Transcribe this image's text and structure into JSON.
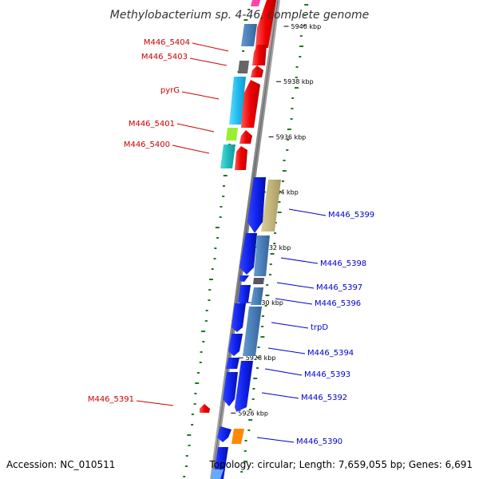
{
  "title": "Methylobacterium sp. 4-46, complete genome",
  "footer": {
    "accession": "Accession: NC_010511",
    "summary": "Topology: circular; Length: 7,659,055 bp; Genes: 6,691"
  },
  "colors": {
    "reverse_label": "#cc0000",
    "forward_label": "#0000cc",
    "backbone": "#888888",
    "gc_ticks": "#227722"
  },
  "kbp_ticks": [
    {
      "label": "5940 kbp",
      "pos_kbp": 5940
    },
    {
      "label": "5938 kbp",
      "pos_kbp": 5938
    },
    {
      "label": "5936 kbp",
      "pos_kbp": 5936
    },
    {
      "label": "5934 kbp",
      "pos_kbp": 5934
    },
    {
      "label": "5932 kbp",
      "pos_kbp": 5932
    },
    {
      "label": "5930 kbp",
      "pos_kbp": 5930
    },
    {
      "label": "5928 kbp",
      "pos_kbp": 5928
    },
    {
      "label": "5926 kbp",
      "pos_kbp": 5926
    }
  ],
  "genes": [
    {
      "label": "M446_5404",
      "strand": "reverse"
    },
    {
      "label": "M446_5403",
      "strand": "reverse"
    },
    {
      "label": "pyrG",
      "strand": "reverse"
    },
    {
      "label": "M446_5401",
      "strand": "reverse"
    },
    {
      "label": "M446_5400",
      "strand": "reverse"
    },
    {
      "label": "M446_5399",
      "strand": "forward"
    },
    {
      "label": "M446_5398",
      "strand": "forward"
    },
    {
      "label": "M446_5397",
      "strand": "forward"
    },
    {
      "label": "M446_5396",
      "strand": "forward"
    },
    {
      "label": "trpD",
      "strand": "forward"
    },
    {
      "label": "M446_5394",
      "strand": "forward"
    },
    {
      "label": "M446_5393",
      "strand": "forward"
    },
    {
      "label": "M446_5392",
      "strand": "forward"
    },
    {
      "label": "M446_5391",
      "strand": "reverse"
    },
    {
      "label": "M446_5390",
      "strand": "forward"
    }
  ]
}
